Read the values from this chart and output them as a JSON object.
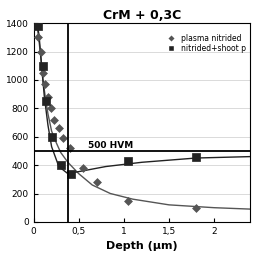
{
  "title": "CrM + 0,3C",
  "legend_label1": "plasma nitrided",
  "legend_label2": "nitrided+shoot p",
  "xlabel": "Depth (μm)",
  "annotation": "500 HVM",
  "hline_y": 500,
  "vline_x": 0.38,
  "xlim": [
    0,
    2.4
  ],
  "ylim": [
    0,
    1400
  ],
  "yticks": [
    0,
    200,
    400,
    600,
    800,
    1000,
    1200,
    1400
  ],
  "xticks": [
    0,
    0.5,
    1.0,
    1.5,
    2.0
  ],
  "xticklabels": [
    "0",
    "0,5",
    "1",
    "1,5",
    "2"
  ],
  "plasma_nitrided_x": [
    0.05,
    0.08,
    0.1,
    0.13,
    0.16,
    0.19,
    0.23,
    0.28,
    0.33,
    0.4,
    0.55,
    0.7,
    1.05,
    1.8
  ],
  "plasma_nitrided_y": [
    1300,
    1200,
    1050,
    970,
    880,
    800,
    720,
    660,
    590,
    520,
    380,
    280,
    150,
    100
  ],
  "plasma_nitrided_curve_x": [
    0.04,
    0.06,
    0.08,
    0.1,
    0.13,
    0.16,
    0.2,
    0.25,
    0.3,
    0.38,
    0.5,
    0.65,
    0.85,
    1.1,
    1.5,
    2.0,
    2.4
  ],
  "plasma_nitrided_curve_y": [
    1380,
    1280,
    1160,
    1020,
    880,
    760,
    640,
    560,
    490,
    420,
    340,
    260,
    200,
    160,
    120,
    100,
    90
  ],
  "nitrided_shoot_x": [
    0.05,
    0.1,
    0.14,
    0.2,
    0.3,
    0.42,
    1.05,
    1.8
  ],
  "nitrided_shoot_y": [
    1380,
    1100,
    850,
    600,
    400,
    340,
    430,
    460
  ],
  "nitrided_shoot_curve_x": [
    0.04,
    0.06,
    0.09,
    0.12,
    0.16,
    0.2,
    0.28,
    0.38,
    0.55,
    0.8,
    1.2,
    1.8,
    2.4
  ],
  "nitrided_shoot_curve_y": [
    1390,
    1320,
    1100,
    880,
    680,
    530,
    390,
    340,
    360,
    390,
    420,
    450,
    460
  ],
  "color_plasma": "#555555",
  "color_shoot": "#222222",
  "marker_plasma": "D",
  "marker_shoot": "s",
  "title_fontsize": 9,
  "legend_fontsize": 5.5,
  "xlabel_fontsize": 8,
  "tick_fontsize": 6.5
}
